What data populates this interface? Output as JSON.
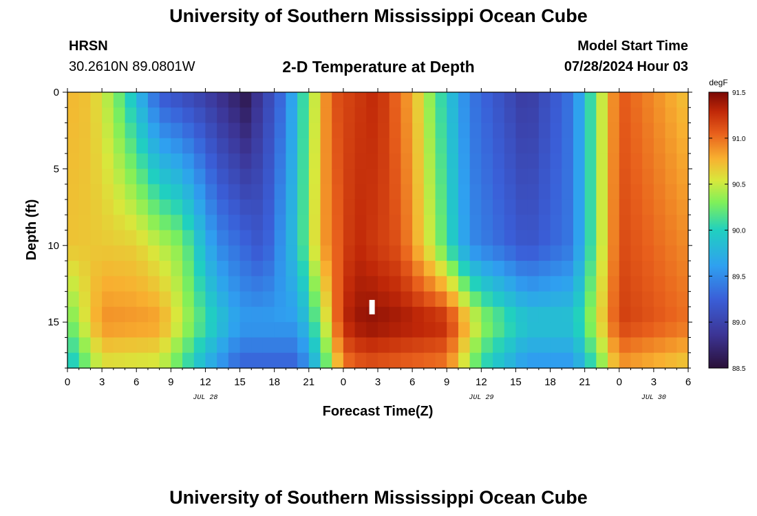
{
  "header": {
    "title": "University of Southern Mississippi Ocean Cube",
    "station": "HRSN",
    "coords": "30.2610N  89.0801W",
    "subtitle": "2-D Temperature at Depth",
    "model_label": "Model Start Time",
    "model_time": "07/28/2024 Hour 03"
  },
  "footer": {
    "title": "University of Southern Mississippi Ocean Cube"
  },
  "chart_data": {
    "type": "heatmap",
    "title": "2-D Temperature at Depth",
    "xlabel": "Forecast Time(Z)",
    "ylabel": "Depth (ft)",
    "x_range_hours": [
      0,
      54
    ],
    "x_tick_hours": [
      0,
      3,
      6,
      9,
      12,
      15,
      18,
      21,
      24,
      27,
      30,
      33,
      36,
      39,
      42,
      45,
      48,
      51,
      54
    ],
    "x_tick_labels": [
      "0",
      "3",
      "6",
      "9",
      "12",
      "15",
      "18",
      "21",
      "0",
      "3",
      "6",
      "9",
      "12",
      "15",
      "18",
      "21",
      "0",
      "3",
      "6"
    ],
    "date_labels": [
      {
        "hour": 12,
        "text": "JUL 28"
      },
      {
        "hour": 36,
        "text": "JUL 29"
      },
      {
        "hour": 51,
        "text": "JUL 30"
      }
    ],
    "y_range_ft": [
      0,
      18
    ],
    "y_ticks": [
      0,
      5,
      10,
      15
    ],
    "y_tick_labels": [
      "0",
      "5",
      "10",
      "15"
    ],
    "colorbar": {
      "unit": "degF",
      "min": 88.5,
      "max": 91.5,
      "ticks": [
        88.5,
        89.0,
        89.5,
        90.0,
        90.5,
        91.0,
        91.5
      ],
      "tick_labels": [
        "88.5",
        "89.0",
        "89.5",
        "90.0",
        "90.5",
        "91.0",
        "91.5"
      ]
    },
    "time_columns": 54,
    "depth_rows": 18,
    "temperature_keyframes_surface": [
      [
        0,
        90.75
      ],
      [
        2,
        90.7
      ],
      [
        4,
        90.35
      ],
      [
        6,
        89.8
      ],
      [
        8,
        89.2
      ],
      [
        12,
        88.95
      ],
      [
        15.5,
        88.6
      ],
      [
        19,
        89.4
      ],
      [
        21,
        90.3
      ],
      [
        23,
        91.1
      ],
      [
        27,
        91.3
      ],
      [
        30,
        90.8
      ],
      [
        32,
        90.2
      ],
      [
        35,
        89.4
      ],
      [
        40,
        88.9
      ],
      [
        44,
        89.4
      ],
      [
        46,
        90.3
      ],
      [
        48,
        91.1
      ],
      [
        54,
        90.7
      ]
    ],
    "temperature_keyframes_mid_10ft": [
      [
        0,
        90.7
      ],
      [
        6,
        90.65
      ],
      [
        10,
        90.3
      ],
      [
        13,
        89.5
      ],
      [
        17,
        89.15
      ],
      [
        20,
        89.9
      ],
      [
        22,
        90.8
      ],
      [
        25,
        91.3
      ],
      [
        29,
        91.1
      ],
      [
        32,
        90.4
      ],
      [
        35,
        89.5
      ],
      [
        40,
        89.15
      ],
      [
        44,
        89.4
      ],
      [
        46,
        90.3
      ],
      [
        48,
        91.15
      ],
      [
        54,
        90.9
      ]
    ],
    "temperature_keyframes_deep_15ft": [
      [
        0,
        90.2
      ],
      [
        3,
        90.9
      ],
      [
        8,
        90.85
      ],
      [
        12,
        90.1
      ],
      [
        15,
        89.6
      ],
      [
        20,
        89.6
      ],
      [
        22,
        90.3
      ],
      [
        24,
        91.3
      ],
      [
        26,
        91.45
      ],
      [
        33,
        91.3
      ],
      [
        36,
        90.4
      ],
      [
        40,
        89.9
      ],
      [
        44,
        89.9
      ],
      [
        46,
        90.5
      ],
      [
        48,
        91.2
      ],
      [
        54,
        91.0
      ]
    ],
    "marker": {
      "hour": 26.5,
      "depth_ft": 14
    }
  }
}
